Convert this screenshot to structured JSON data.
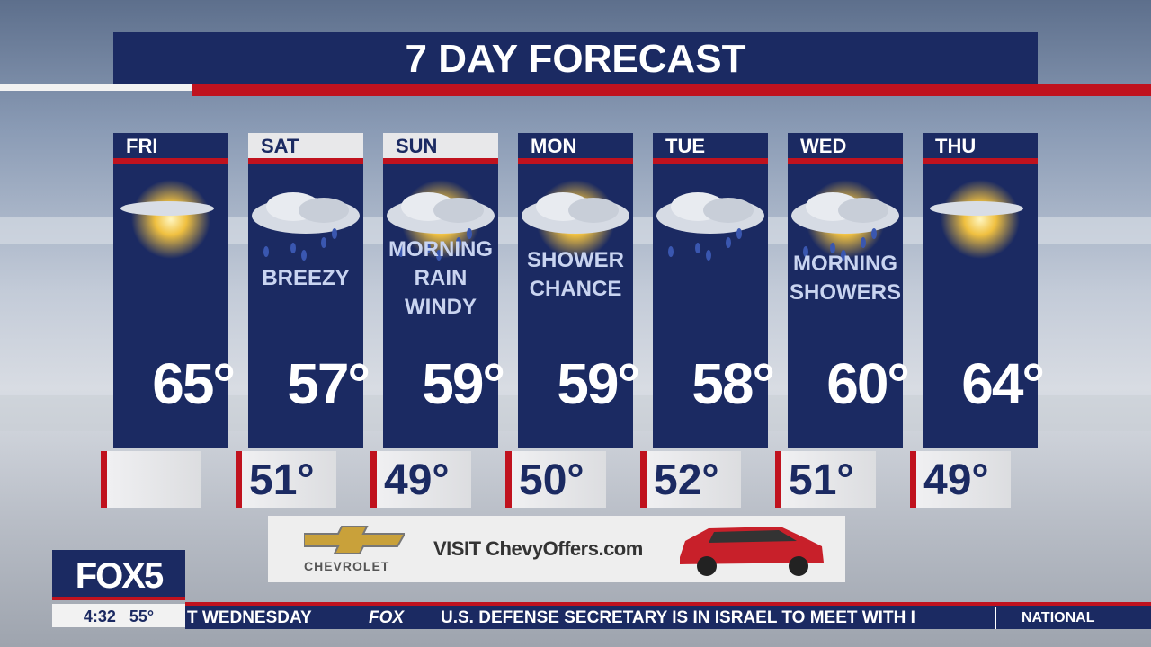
{
  "title": "7 DAY FORECAST",
  "days": [
    {
      "day": "FRI",
      "high": "65°",
      "low": "",
      "condition": [],
      "icon": "sun-thin-cloud-icon"
    },
    {
      "day": "SAT",
      "high": "57°",
      "low": "51°",
      "condition": [
        "BREEZY"
      ],
      "icon": "cloud-rain-icon"
    },
    {
      "day": "SUN",
      "high": "59°",
      "low": "49°",
      "condition": [
        "MORNING",
        "RAIN",
        "WINDY"
      ],
      "icon": "sun-cloud-rain-icon"
    },
    {
      "day": "MON",
      "high": "59°",
      "low": "50°",
      "condition": [
        "SHOWER",
        "CHANCE"
      ],
      "icon": "sun-cloud-icon"
    },
    {
      "day": "TUE",
      "high": "58°",
      "low": "52°",
      "condition": [],
      "icon": "cloud-rain-icon"
    },
    {
      "day": "WED",
      "high": "60°",
      "low": "51°",
      "condition": [
        "MORNING",
        "SHOWERS"
      ],
      "icon": "sun-cloud-rain-icon"
    },
    {
      "day": "THU",
      "high": "64°",
      "low": "49°",
      "condition": [],
      "icon": "sun-thin-cloud-icon"
    }
  ],
  "ad": {
    "brand": "CHEVROLET",
    "text": "VISIT ChevyOffers.com"
  },
  "station": {
    "logo": "FOX5",
    "time": "4:32",
    "temp": "55°"
  },
  "ticker": {
    "prev": "T WEDNESDAY",
    "source": "FOX",
    "headline": "U.S. DEFENSE SECRETARY IS IN ISRAEL TO MEET WITH I",
    "section": "NATIONAL"
  },
  "colors": {
    "navy": "#1b2a62",
    "red": "#c0121e"
  }
}
